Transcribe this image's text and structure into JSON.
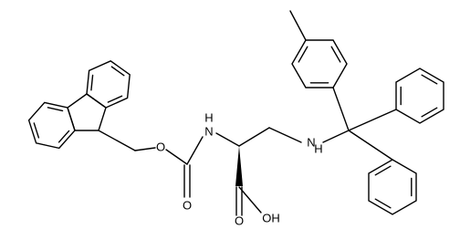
{
  "atom_labels": [
    "O",
    "O",
    "H",
    "N",
    "H",
    "N",
    "O",
    "OH"
  ]
}
